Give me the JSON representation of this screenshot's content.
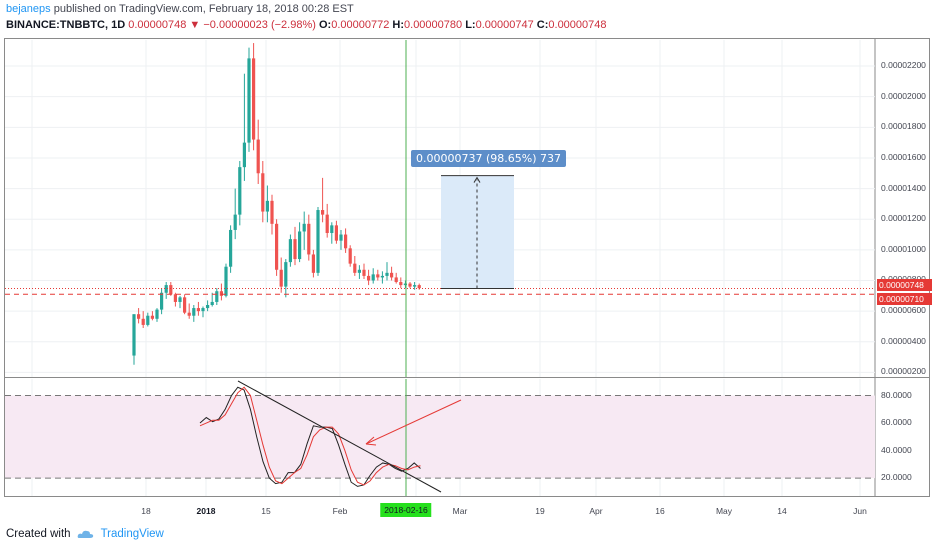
{
  "header": {
    "user": "bejaneps",
    "published": "published on TradingView.com, February 18, 2018 00:28 EST",
    "symbol": "BINANCE:TNBBTC, 1D",
    "last": "0.00000748",
    "arrow": "▼",
    "change": "−0.00000023 (−2.98%)",
    "o_label": "O:",
    "o_val": "0.00000772",
    "h_label": "H:",
    "h_val": "0.00000780",
    "l_label": "L:",
    "l_val": "0.00000747",
    "c_label": "C:",
    "c_val": "0.00000748"
  },
  "price_tags": {
    "current": "0.00000748",
    "level": "0.00000710"
  },
  "measure_label": "0.00000737 (98.65%) 737",
  "footer": {
    "created_with": "Created with",
    "brand": "TradingView"
  },
  "colors": {
    "up": "#26a69a",
    "down": "#ef5350",
    "accent": "#2196f3",
    "marker": "#26e01d"
  },
  "chart_data": [
    {
      "type": "candlestick",
      "y_axis_labels": [
        "0.00002200",
        "0.00002000",
        "0.00001800",
        "0.00001600",
        "0.00001400",
        "0.00001200",
        "0.00001000",
        "0.00000800",
        "0.00000600",
        "0.00000400",
        "0.00000200"
      ],
      "x_axis_labels": [
        "18",
        "2018",
        "15",
        "Feb",
        "2018-02-16",
        "Mar",
        "19",
        "Apr",
        "16",
        "May",
        "14",
        "Jun"
      ],
      "ylim": [
        1.7e-06,
        2.37e-05
      ],
      "candles": [
        [
          3.1e-06,
          5.8e-06,
          2.5e-06,
          5.8e-06
        ],
        [
          5.8e-06,
          6.2e-06,
          5.2e-06,
          5.5e-06
        ],
        [
          5.5e-06,
          6e-06,
          4.9e-06,
          5.1e-06
        ],
        [
          5.1e-06,
          5.9e-06,
          5e-06,
          5.7e-06
        ],
        [
          5.7e-06,
          6e-06,
          5.4e-06,
          5.5e-06
        ],
        [
          5.5e-06,
          6.2e-06,
          5.3e-06,
          6.1e-06
        ],
        [
          6.1e-06,
          7.5e-06,
          5.8e-06,
          7.2e-06
        ],
        [
          7.2e-06,
          7.9e-06,
          6.8e-06,
          7.7e-06
        ],
        [
          7.7e-06,
          7.9e-06,
          7e-06,
          7.1e-06
        ],
        [
          7.1e-06,
          7.2e-06,
          6.3e-06,
          6.6e-06
        ],
        [
          6.6e-06,
          7e-06,
          6.2e-06,
          6.9e-06
        ],
        [
          6.9e-06,
          7.1e-06,
          5.8e-06,
          5.9e-06
        ],
        [
          5.9e-06,
          6.5e-06,
          5.5e-06,
          5.7e-06
        ],
        [
          5.7e-06,
          6.4e-06,
          5.3e-06,
          6.2e-06
        ],
        [
          6.2e-06,
          6.6e-06,
          5.7e-06,
          6e-06
        ],
        [
          6e-06,
          6.3e-06,
          5.6e-06,
          6.2e-06
        ],
        [
          6.2e-06,
          6.7e-06,
          6e-06,
          6.4e-06
        ],
        [
          6.4e-06,
          7.2e-06,
          6.3e-06,
          6.6e-06
        ],
        [
          6.6e-06,
          7.5e-06,
          6.4e-06,
          7.3e-06
        ],
        [
          7.3e-06,
          7.8e-06,
          6.7e-06,
          7e-06
        ],
        [
          7e-06,
          9.1e-06,
          6.9e-06,
          8.9e-06
        ],
        [
          8.9e-06,
          1.16e-05,
          8.5e-06,
          1.13e-05
        ],
        [
          1.13e-05,
          1.4e-05,
          1.07e-05,
          1.23e-05
        ],
        [
          1.23e-05,
          1.58e-05,
          1.16e-05,
          1.54e-05
        ],
        [
          1.54e-05,
          2.15e-05,
          1.45e-05,
          1.7e-05
        ],
        [
          1.7e-05,
          2.32e-05,
          1.64e-05,
          2.25e-05
        ],
        [
          2.25e-05,
          2.35e-05,
          1.65e-05,
          1.72e-05
        ],
        [
          1.72e-05,
          1.85e-05,
          1.43e-05,
          1.5e-05
        ],
        [
          1.5e-05,
          1.58e-05,
          1.18e-05,
          1.25e-05
        ],
        [
          1.25e-05,
          1.42e-05,
          1.18e-05,
          1.32e-05
        ],
        [
          1.32e-05,
          1.36e-05,
          1.1e-05,
          1.17e-05
        ],
        [
          1.17e-05,
          1.2e-05,
          8.3e-06,
          8.7e-06
        ],
        [
          8.7e-06,
          9.5e-06,
          7.2e-06,
          7.6e-06
        ],
        [
          7.6e-06,
          9.4e-06,
          6.9e-06,
          9.2e-06
        ],
        [
          9.2e-06,
          1.1e-05,
          8.9e-06,
          1.07e-05
        ],
        [
          1.07e-05,
          1.15e-05,
          9e-06,
          9.4e-06
        ],
        [
          9.4e-06,
          1.18e-05,
          9.2e-06,
          1.12e-05
        ],
        [
          1.12e-05,
          1.25e-05,
          1e-05,
          1.17e-05
        ],
        [
          1.17e-05,
          1.23e-05,
          9.3e-06,
          9.7e-06
        ],
        [
          9.7e-06,
          1e-05,
          8.2e-06,
          8.5e-06
        ],
        [
          8.5e-06,
          1.28e-05,
          8.3e-06,
          1.26e-05
        ],
        [
          1.26e-05,
          1.47e-05,
          1.18e-05,
          1.23e-05
        ],
        [
          1.23e-05,
          1.3e-05,
          1.08e-05,
          1.11e-05
        ],
        [
          1.11e-05,
          1.18e-05,
          1.04e-05,
          1.16e-05
        ],
        [
          1.16e-05,
          1.19e-05,
          1.04e-05,
          1.06e-05
        ],
        [
          1.06e-05,
          1.13e-05,
          1e-05,
          1.1e-05
        ],
        [
          1.1e-05,
          1.14e-05,
          9.8e-06,
          1.01e-05
        ],
        [
          1.01e-05,
          1.03e-05,
          8.9e-06,
          9.1e-06
        ],
        [
          9.1e-06,
          9.6e-06,
          8.3e-06,
          8.5e-06
        ],
        [
          8.5e-06,
          9e-06,
          8.1e-06,
          8.7e-06
        ],
        [
          8.7e-06,
          9.1e-06,
          8.1e-06,
          8.3e-06
        ],
        [
          8.3e-06,
          8.7e-06,
          7.7e-06,
          8e-06
        ],
        [
          8e-06,
          8.8e-06,
          7.8e-06,
          8.4e-06
        ],
        [
          8.4e-06,
          8.7e-06,
          8e-06,
          8.2e-06
        ],
        [
          8.2e-06,
          8.6e-06,
          7.8e-06,
          8.3e-06
        ],
        [
          8.3e-06,
          9.2e-06,
          8e-06,
          8.5e-06
        ],
        [
          8.5e-06,
          8.9e-06,
          8e-06,
          8.2e-06
        ],
        [
          8.2e-06,
          8.5e-06,
          7.8e-06,
          7.9e-06
        ],
        [
          7.9e-06,
          8.2e-06,
          7.5e-06,
          7.7e-06
        ],
        [
          7.7e-06,
          8e-06,
          7.5e-06,
          7.8e-06
        ],
        [
          7.8e-06,
          7.9e-06,
          7.5e-06,
          7.6e-06
        ],
        [
          7.6e-06,
          7.9e-06,
          7.4e-06,
          7.7e-06
        ],
        [
          7.7e-06,
          7.8e-06,
          7.4e-06,
          7.5e-06
        ]
      ],
      "horizontal_lines": [
        7.48e-06,
        7.1e-06
      ],
      "measure": {
        "from": 7.48e-06,
        "to": 1.485e-05
      }
    },
    {
      "type": "line",
      "y_axis_labels": [
        "80.0000",
        "60.0000",
        "40.0000",
        "20.0000"
      ],
      "ylim": [
        7,
        92
      ],
      "bands": [
        20,
        80
      ],
      "series": [
        {
          "values": [
            60,
            64,
            61,
            63,
            70,
            80,
            86,
            84,
            70,
            50,
            32,
            20,
            16,
            17,
            24,
            24,
            30,
            45,
            58,
            57,
            57,
            56,
            44,
            30,
            17,
            14,
            15,
            22,
            28,
            31,
            30,
            27,
            25,
            27,
            31,
            27
          ]
        },
        {
          "values": [
            58,
            60,
            62,
            62,
            66,
            74,
            82,
            86,
            80,
            62,
            44,
            28,
            18,
            16,
            20,
            24,
            27,
            37,
            50,
            55,
            57,
            57,
            52,
            40,
            26,
            17,
            15,
            18,
            24,
            28,
            30,
            29,
            27,
            26,
            28,
            29
          ]
        }
      ]
    }
  ]
}
